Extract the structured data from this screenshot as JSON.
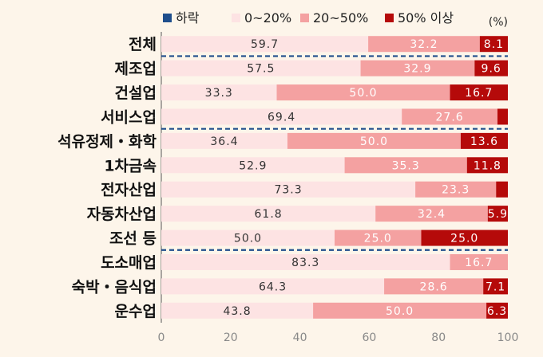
{
  "chart_data": {
    "type": "bar",
    "orientation": "horizontal",
    "stacked": true,
    "unit_label": "(%)",
    "categories": [
      "전체",
      "제조업",
      "건설업",
      "서비스업",
      "석유정제・화학",
      "1차금속",
      "전자산업",
      "자동차산업",
      "조선 등",
      "도소매업",
      "숙박・음식업",
      "운수업"
    ],
    "series": [
      {
        "name": "하락",
        "color": "#1f4e8c",
        "values": [
          0,
          0,
          0,
          0,
          0,
          0,
          0,
          0,
          0,
          0,
          0,
          0
        ]
      },
      {
        "name": "0~20%",
        "color": "#fde3e3",
        "label_color": "#333333",
        "values": [
          59.7,
          57.5,
          33.3,
          69.4,
          36.4,
          52.9,
          73.3,
          61.8,
          50.0,
          83.3,
          64.3,
          43.8
        ]
      },
      {
        "name": "20~50%",
        "color": "#f4a1a1",
        "label_color": "#ffffff",
        "values": [
          32.2,
          32.9,
          50.0,
          27.6,
          50.0,
          35.3,
          23.3,
          32.4,
          25.0,
          16.7,
          28.6,
          50.0
        ]
      },
      {
        "name": "50% 이상",
        "color": "#b50a0a",
        "label_color": "#ffffff",
        "values": [
          8.1,
          9.6,
          16.7,
          3.0,
          13.6,
          11.8,
          3.4,
          5.9,
          25.0,
          0,
          7.1,
          6.3
        ]
      }
    ],
    "data_labels": [
      [
        "",
        "59.7",
        "32.2",
        "8.1"
      ],
      [
        "",
        "57.5",
        "32.9",
        "9.6"
      ],
      [
        "",
        "33.3",
        "50.0",
        "16.7"
      ],
      [
        "",
        "69.4",
        "27.6",
        ""
      ],
      [
        "",
        "36.4",
        "50.0",
        "13.6"
      ],
      [
        "",
        "52.9",
        "35.3",
        "11.8"
      ],
      [
        "",
        "73.3",
        "23.3",
        ""
      ],
      [
        "",
        "61.8",
        "32.4",
        "5.9"
      ],
      [
        "",
        "50.0",
        "25.0",
        "25.0"
      ],
      [
        "",
        "83.3",
        "16.7",
        ""
      ],
      [
        "",
        "64.3",
        "28.6",
        "7.1"
      ],
      [
        "",
        "43.8",
        "50.0",
        "6.3"
      ]
    ],
    "x_ticks": [
      "0",
      "20",
      "40",
      "60",
      "80",
      "100"
    ],
    "xlim": [
      0,
      100
    ],
    "group_separators_after": [
      "전체",
      "서비스업",
      "조선 등"
    ],
    "separator_color": "#1f4e8c",
    "legend_position": "top"
  }
}
